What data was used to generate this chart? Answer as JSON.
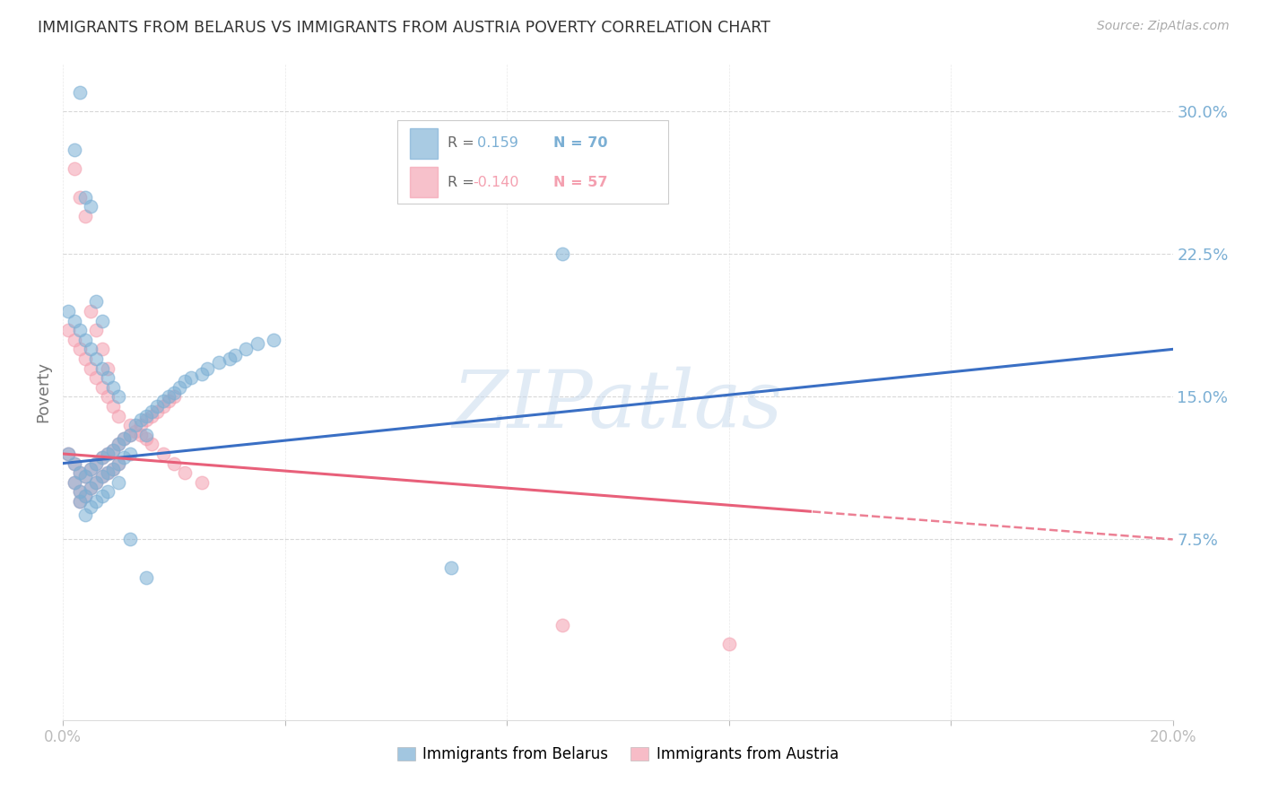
{
  "title": "IMMIGRANTS FROM BELARUS VS IMMIGRANTS FROM AUSTRIA POVERTY CORRELATION CHART",
  "source": "Source: ZipAtlas.com",
  "ylabel": "Poverty",
  "watermark": "ZIPatlas",
  "xlim": [
    0.0,
    0.2
  ],
  "ylim": [
    -0.02,
    0.325
  ],
  "yticks": [
    0.075,
    0.15,
    0.225,
    0.3
  ],
  "ytick_labels": [
    "7.5%",
    "15.0%",
    "22.5%",
    "30.0%"
  ],
  "xticks": [
    0.0,
    0.04,
    0.08,
    0.12,
    0.16,
    0.2
  ],
  "xtick_labels_show": [
    "0.0%",
    "",
    "",
    "",
    "",
    "20.0%"
  ],
  "belarus_R": 0.159,
  "belarus_N": 70,
  "austria_R": -0.14,
  "austria_N": 57,
  "color_belarus": "#7BAFD4",
  "color_austria": "#F4A0B0",
  "color_belarus_line": "#3A6FC4",
  "color_austria_line": "#E8607A",
  "background_color": "#FFFFFF",
  "grid_color": "#C8C8C8",
  "axis_color": "#7BAFD4",
  "title_color": "#333333",
  "watermark_color": "#C5D8EC",
  "belarus_x": [
    0.001,
    0.002,
    0.002,
    0.003,
    0.003,
    0.003,
    0.004,
    0.004,
    0.004,
    0.005,
    0.005,
    0.005,
    0.006,
    0.006,
    0.006,
    0.007,
    0.007,
    0.007,
    0.008,
    0.008,
    0.008,
    0.009,
    0.009,
    0.01,
    0.01,
    0.01,
    0.011,
    0.011,
    0.012,
    0.012,
    0.013,
    0.014,
    0.015,
    0.015,
    0.016,
    0.017,
    0.018,
    0.019,
    0.02,
    0.021,
    0.022,
    0.023,
    0.025,
    0.026,
    0.028,
    0.03,
    0.031,
    0.033,
    0.035,
    0.038,
    0.001,
    0.002,
    0.003,
    0.004,
    0.005,
    0.006,
    0.007,
    0.008,
    0.009,
    0.01,
    0.002,
    0.003,
    0.004,
    0.005,
    0.006,
    0.007,
    0.09,
    0.07,
    0.012,
    0.015
  ],
  "belarus_y": [
    0.12,
    0.115,
    0.105,
    0.11,
    0.1,
    0.095,
    0.108,
    0.098,
    0.088,
    0.112,
    0.102,
    0.092,
    0.115,
    0.105,
    0.095,
    0.118,
    0.108,
    0.098,
    0.12,
    0.11,
    0.1,
    0.122,
    0.112,
    0.125,
    0.115,
    0.105,
    0.128,
    0.118,
    0.13,
    0.12,
    0.135,
    0.138,
    0.14,
    0.13,
    0.142,
    0.145,
    0.148,
    0.15,
    0.152,
    0.155,
    0.158,
    0.16,
    0.162,
    0.165,
    0.168,
    0.17,
    0.172,
    0.175,
    0.178,
    0.18,
    0.195,
    0.19,
    0.185,
    0.18,
    0.175,
    0.17,
    0.165,
    0.16,
    0.155,
    0.15,
    0.28,
    0.31,
    0.255,
    0.25,
    0.2,
    0.19,
    0.225,
    0.06,
    0.075,
    0.055
  ],
  "austria_x": [
    0.001,
    0.002,
    0.002,
    0.003,
    0.003,
    0.004,
    0.004,
    0.005,
    0.005,
    0.006,
    0.006,
    0.007,
    0.007,
    0.008,
    0.008,
    0.009,
    0.009,
    0.01,
    0.01,
    0.011,
    0.012,
    0.013,
    0.014,
    0.015,
    0.015,
    0.016,
    0.017,
    0.018,
    0.019,
    0.02,
    0.001,
    0.002,
    0.003,
    0.004,
    0.005,
    0.006,
    0.007,
    0.008,
    0.009,
    0.01,
    0.012,
    0.014,
    0.016,
    0.018,
    0.02,
    0.022,
    0.025,
    0.002,
    0.003,
    0.004,
    0.005,
    0.006,
    0.007,
    0.008,
    0.09,
    0.12,
    0.003
  ],
  "austria_y": [
    0.12,
    0.115,
    0.105,
    0.11,
    0.1,
    0.108,
    0.098,
    0.112,
    0.102,
    0.115,
    0.105,
    0.118,
    0.108,
    0.12,
    0.11,
    0.122,
    0.112,
    0.125,
    0.115,
    0.128,
    0.13,
    0.132,
    0.135,
    0.138,
    0.128,
    0.14,
    0.142,
    0.145,
    0.148,
    0.15,
    0.185,
    0.18,
    0.175,
    0.17,
    0.165,
    0.16,
    0.155,
    0.15,
    0.145,
    0.14,
    0.135,
    0.13,
    0.125,
    0.12,
    0.115,
    0.11,
    0.105,
    0.27,
    0.255,
    0.245,
    0.195,
    0.185,
    0.175,
    0.165,
    0.03,
    0.02,
    0.095
  ]
}
